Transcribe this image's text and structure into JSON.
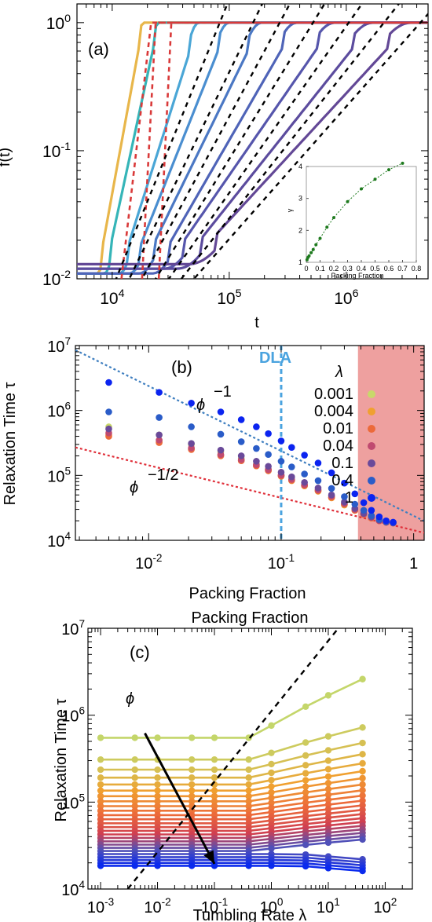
{
  "colors": {
    "dashed_black": "#000000",
    "dashed_red": "#d93a3a",
    "dla_line": "#4aa3df",
    "fit_blue": "#3f7fc0",
    "fit_red": "#e0303a",
    "shade": "#e8807f",
    "inset_series": "#1e7a1e"
  },
  "chart_data": [
    {
      "panel": "(a)",
      "type": "line",
      "xlabel": "t",
      "ylabel": "f(t)",
      "x_scale": "log",
      "y_scale": "log",
      "xlim": [
        5000,
        5000000
      ],
      "ylim": [
        0.01,
        1.4
      ],
      "x_ticks": [
        {
          "v": 10000,
          "label": "10",
          "exp": "4"
        },
        {
          "v": 100000,
          "label": "10",
          "exp": "5"
        },
        {
          "v": 1000000,
          "label": "10",
          "exp": "6"
        }
      ],
      "y_ticks": [
        {
          "v": 0.01,
          "label": "10",
          "exp": "-2"
        },
        {
          "v": 0.1,
          "label": "10",
          "exp": "-1"
        },
        {
          "v": 1,
          "label": "10",
          "exp": "0"
        }
      ],
      "curves": [
        {
          "color": "#e8b64a",
          "t_start": 7500,
          "t_sat": 18500,
          "base": 0.011
        },
        {
          "color": "#35b5b8",
          "t_start": 8600,
          "t_sat": 25000,
          "base": 0.011
        },
        {
          "color": "#4aa6d6",
          "t_start": 11500,
          "t_sat": 55000,
          "base": 0.011
        },
        {
          "color": "#4a8ed0",
          "t_start": 14000,
          "t_sat": 100000,
          "base": 0.011
        },
        {
          "color": "#4b78c4",
          "t_start": 17000,
          "t_sat": 190000,
          "base": 0.011
        },
        {
          "color": "#4f64b8",
          "t_start": 22000,
          "t_sat": 380000,
          "base": 0.011
        },
        {
          "color": "#5656ac",
          "t_start": 28000,
          "t_sat": 800000,
          "base": 0.012
        },
        {
          "color": "#5c4c9e",
          "t_start": 36000,
          "t_sat": 1700000,
          "base": 0.012
        },
        {
          "color": "#634896",
          "t_start": 45000,
          "t_sat": 3600000,
          "base": 0.013
        }
      ],
      "red_dashed_fits": [
        {
          "t_start": 12000,
          "t_sat": 21500
        },
        {
          "t_start": 18000,
          "t_sat": 23500
        },
        {
          "t_start": 25000,
          "t_sat": 32000
        }
      ],
      "black_dashed_fits": [
        {
          "t_at_001": 10800,
          "t_at_1": 83000
        },
        {
          "t_at_001": 14000,
          "t_at_1": 160000
        },
        {
          "t_at_001": 18000,
          "t_at_1": 270000
        },
        {
          "t_at_001": 23500,
          "t_at_1": 520000
        },
        {
          "t_at_001": 30500,
          "t_at_1": 1050000
        },
        {
          "t_at_001": 39000,
          "t_at_1": 2100000
        },
        {
          "t_at_001": 50000,
          "t_at_1": 4300000
        }
      ],
      "red_dashed_plateau": 1.0,
      "inset": {
        "type": "line",
        "xlabel": "Packing Fraction",
        "ylabel": "γ",
        "xlim": [
          0,
          0.8
        ],
        "ylim": [
          1,
          4
        ],
        "x_ticks": [
          "0",
          "0.1",
          "0.2",
          "0.3",
          "0.4",
          "0.5",
          "0.6",
          "0.7",
          "0.8"
        ],
        "y_ticks": [
          "1",
          "2",
          "3",
          "4"
        ],
        "x": [
          0.005,
          0.012,
          0.02,
          0.035,
          0.05,
          0.07,
          0.1,
          0.15,
          0.2,
          0.3,
          0.4,
          0.5,
          0.6,
          0.7
        ],
        "y": [
          1.08,
          1.15,
          1.2,
          1.3,
          1.4,
          1.55,
          1.75,
          2.1,
          2.4,
          2.9,
          3.3,
          3.6,
          3.9,
          4.1
        ]
      }
    },
    {
      "panel": "(b)",
      "type": "scatter",
      "xlabel": "Packing Fraction",
      "ylabel": "Relaxation Time τ",
      "x_scale": "log",
      "y_scale": "log",
      "xlim": [
        0.0028,
        1.2
      ],
      "ylim": [
        10000,
        10000000
      ],
      "x_ticks": [
        {
          "v": 0.01,
          "label": "10",
          "exp": "-2"
        },
        {
          "v": 0.1,
          "label": "10",
          "exp": "-1"
        },
        {
          "v": 1,
          "label": "1",
          "exp": ""
        }
      ],
      "y_ticks": [
        {
          "v": 10000,
          "label": "10",
          "exp": "4"
        },
        {
          "v": 100000,
          "label": "10",
          "exp": "5"
        },
        {
          "v": 1000000,
          "label": "10",
          "exp": "6"
        },
        {
          "v": 10000000,
          "label": "10",
          "exp": "7"
        }
      ],
      "legend_title": "λ",
      "legend_position": "top-right",
      "annotations": {
        "phi_minus1": "ϕ",
        "phi_minus1_exp": "−1",
        "phi_minus_half": "ϕ",
        "phi_minus_half_exp": "−1/2",
        "dla": "DLA"
      },
      "dla_x": 0.1,
      "shaded_from_x": 0.38,
      "fit_minus1": {
        "x0": 0.0028,
        "y0": 8500000,
        "slope": -1
      },
      "fit_minus_half": {
        "x0": 0.0028,
        "y0": 270000,
        "slope": -0.5
      },
      "x": [
        0.005,
        0.012,
        0.021,
        0.035,
        0.05,
        0.065,
        0.08,
        0.1,
        0.12,
        0.15,
        0.19,
        0.24,
        0.3,
        0.36,
        0.42,
        0.48,
        0.55,
        0.62,
        0.7
      ],
      "series": [
        {
          "name": "0.001",
          "color": "#c8d86a",
          "values": [
            560000,
            420000,
            300000,
            230000,
            185000,
            150000,
            125000,
            100000,
            85000,
            70000,
            58000,
            46000,
            36000,
            29000,
            25000,
            22000,
            20000,
            19000,
            18500
          ]
        },
        {
          "name": "0.004",
          "color": "#f0a030",
          "values": [
            420000,
            330000,
            255000,
            205000,
            170000,
            140000,
            118000,
            97000,
            83000,
            69000,
            57000,
            45000,
            35000,
            29000,
            25000,
            22000,
            20000,
            19000,
            18500
          ]
        },
        {
          "name": "0.01",
          "color": "#ec6a3a",
          "values": [
            400000,
            320000,
            250000,
            200000,
            168000,
            140000,
            118000,
            98000,
            84000,
            70000,
            58000,
            46000,
            36000,
            29000,
            25000,
            22000,
            20000,
            19000,
            18500
          ]
        },
        {
          "name": "0.04",
          "color": "#c04a70",
          "values": [
            450000,
            350000,
            265000,
            210000,
            175000,
            146000,
            123000,
            101000,
            87000,
            72000,
            60000,
            48000,
            37000,
            30000,
            25500,
            22500,
            20000,
            19000,
            18500
          ]
        },
        {
          "name": "0.1",
          "color": "#6a4a9a",
          "values": [
            520000,
            420000,
            310000,
            245000,
            200000,
            165000,
            138000,
            112000,
            95000,
            78000,
            64000,
            50000,
            39000,
            31000,
            26000,
            23000,
            20500,
            19000,
            18500
          ]
        },
        {
          "name": "0.4",
          "color": "#2a5cc8",
          "values": [
            950000,
            780000,
            560000,
            430000,
            330000,
            260000,
            210000,
            165000,
            135000,
            105000,
            83000,
            63000,
            47000,
            36000,
            29000,
            24000,
            21000,
            19500,
            18800
          ]
        },
        {
          "name": "1",
          "color": "#0b24f0",
          "values": [
            2700000,
            1900000,
            1300000,
            950000,
            720000,
            560000,
            440000,
            340000,
            270000,
            205000,
            155000,
            110000,
            76000,
            52000,
            38000,
            29000,
            23000,
            20000,
            19000
          ]
        }
      ]
    },
    {
      "panel": "(c)",
      "type": "line",
      "xlabel": "Tumbling Rate λ",
      "ylabel": "Relaxation Time τ",
      "title": "Packing Fraction",
      "x_scale": "log",
      "y_scale": "log",
      "xlim": [
        0.0006,
        300
      ],
      "ylim": [
        10000,
        10000000
      ],
      "x_ticks": [
        {
          "v": 0.001,
          "label": "10",
          "exp": "-3"
        },
        {
          "v": 0.01,
          "label": "10",
          "exp": "-2"
        },
        {
          "v": 0.1,
          "label": "10",
          "exp": "-1"
        },
        {
          "v": 1,
          "label": "10",
          "exp": "0"
        },
        {
          "v": 10,
          "label": "10",
          "exp": "1"
        },
        {
          "v": 100,
          "label": "10",
          "exp": "2"
        }
      ],
      "y_ticks": [
        {
          "v": 10000,
          "label": "10",
          "exp": "4"
        },
        {
          "v": 100000,
          "label": "10",
          "exp": "5"
        },
        {
          "v": 1000000,
          "label": "10",
          "exp": "6"
        },
        {
          "v": 10000000,
          "label": "10",
          "exp": "7"
        }
      ],
      "phi_label": "ϕ",
      "dashed_line": {
        "x1": 0.003,
        "y1": 10000,
        "x2": 15,
        "y2": 10000000
      },
      "arrow": {
        "x1": 0.006,
        "y1": 620000,
        "x2": 0.1,
        "y2": 19500
      },
      "x": [
        0.001,
        0.004,
        0.01,
        0.04,
        0.1,
        0.4,
        1,
        4,
        10,
        40
      ],
      "series_low": [
        550000,
        18500
      ],
      "series_high_endpoint": [
        2600000,
        25000
      ],
      "n_series": 26,
      "color_ramp": [
        "#c4d66a",
        "#f0a030",
        "#ec6a3a",
        "#d04050",
        "#5050b8",
        "#0a2aee"
      ]
    }
  ]
}
